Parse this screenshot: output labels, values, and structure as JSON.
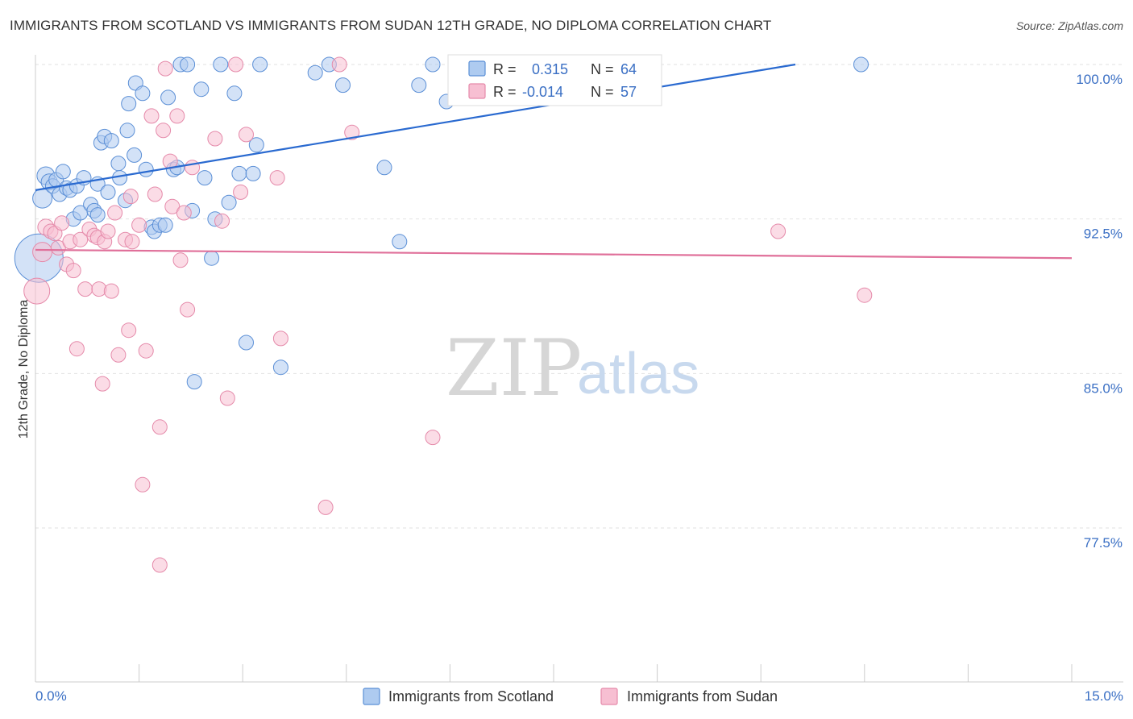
{
  "title": "IMMIGRANTS FROM SCOTLAND VS IMMIGRANTS FROM SUDAN 12TH GRADE, NO DIPLOMA CORRELATION CHART",
  "source": "Source: ZipAtlas.com",
  "watermark": {
    "zip": "ZIP",
    "atlas": "atlas"
  },
  "colors": {
    "scotland_fill": "#aecbf0",
    "scotland_stroke": "#5b8fd6",
    "scotland_line": "#2a6ad0",
    "sudan_fill": "#f7bfd2",
    "sudan_stroke": "#e58aaa",
    "sudan_line": "#e0709a",
    "value_text": "#3a6fc4"
  },
  "legend": {
    "scotland": {
      "r_label": "R =",
      "r_value": "0.315",
      "n_label": "N =",
      "n_value": "64"
    },
    "sudan": {
      "r_label": "R =",
      "r_value": "-0.014",
      "n_label": "N =",
      "n_value": "57"
    }
  },
  "bottom_legend": {
    "scotland": "Immigrants from Scotland",
    "sudan": "Immigrants from Sudan"
  },
  "chart_data": {
    "type": "scatter",
    "title": "IMMIGRANTS FROM SCOTLAND VS IMMIGRANTS FROM SUDAN 12TH GRADE, NO DIPLOMA CORRELATION CHART",
    "xlabel": "",
    "ylabel": "12th Grade, No Diploma",
    "xlim": [
      0,
      15
    ],
    "ylim": [
      70,
      100.5
    ],
    "x_tick_labels": [
      "0.0%",
      "15.0%"
    ],
    "y_ticks": [
      77.5,
      85.0,
      92.5,
      100.0
    ],
    "y_tick_labels": [
      "77.5%",
      "85.0%",
      "92.5%",
      "100.0%"
    ],
    "series": [
      {
        "name": "Immigrants from Scotland",
        "R": 0.315,
        "N": 64,
        "trend": {
          "x0": 0,
          "y0": 93.9,
          "x1": 11.0,
          "y1": 100.0
        },
        "points": [
          [
            0.05,
            90.6,
            30
          ],
          [
            0.1,
            93.5,
            12
          ],
          [
            0.15,
            94.6,
            11
          ],
          [
            0.2,
            94.3,
            10
          ],
          [
            0.25,
            94.1,
            9
          ],
          [
            0.3,
            94.4,
            9
          ],
          [
            0.35,
            93.7,
            9
          ],
          [
            0.4,
            94.8,
            9
          ],
          [
            0.45,
            94.0,
            9
          ],
          [
            0.5,
            93.9,
            9
          ],
          [
            0.55,
            92.5,
            9
          ],
          [
            0.6,
            94.1,
            9
          ],
          [
            0.65,
            92.8,
            9
          ],
          [
            0.7,
            94.5,
            9
          ],
          [
            0.8,
            93.2,
            9
          ],
          [
            0.85,
            92.9,
            9
          ],
          [
            0.9,
            92.7,
            9
          ],
          [
            0.9,
            94.2,
            9
          ],
          [
            0.95,
            96.2,
            9
          ],
          [
            1.0,
            96.5,
            9
          ],
          [
            1.05,
            93.8,
            9
          ],
          [
            1.1,
            96.3,
            9
          ],
          [
            1.2,
            95.2,
            9
          ],
          [
            1.22,
            94.5,
            9
          ],
          [
            1.3,
            93.4,
            9
          ],
          [
            1.33,
            96.8,
            9
          ],
          [
            1.35,
            98.1,
            9
          ],
          [
            1.43,
            95.6,
            9
          ],
          [
            1.45,
            99.1,
            9
          ],
          [
            1.55,
            98.6,
            9
          ],
          [
            1.6,
            94.9,
            9
          ],
          [
            1.68,
            92.1,
            9
          ],
          [
            1.72,
            91.9,
            9
          ],
          [
            1.8,
            92.2,
            9
          ],
          [
            1.88,
            92.2,
            9
          ],
          [
            1.92,
            98.4,
            9
          ],
          [
            2.0,
            94.9,
            9
          ],
          [
            2.05,
            95.0,
            9
          ],
          [
            2.1,
            100.0,
            9
          ],
          [
            2.2,
            100.0,
            9
          ],
          [
            2.27,
            92.9,
            9
          ],
          [
            2.3,
            84.6,
            9
          ],
          [
            2.4,
            98.8,
            9
          ],
          [
            2.45,
            94.5,
            9
          ],
          [
            2.55,
            90.6,
            9
          ],
          [
            2.6,
            92.5,
            9
          ],
          [
            2.68,
            100.0,
            9
          ],
          [
            2.8,
            93.3,
            9
          ],
          [
            2.88,
            98.6,
            9
          ],
          [
            2.95,
            94.7,
            9
          ],
          [
            3.05,
            86.5,
            9
          ],
          [
            3.15,
            94.7,
            9
          ],
          [
            3.2,
            96.1,
            9
          ],
          [
            3.25,
            100.0,
            9
          ],
          [
            3.55,
            85.3,
            9
          ],
          [
            4.05,
            99.6,
            9
          ],
          [
            4.25,
            100.0,
            9
          ],
          [
            4.45,
            99.0,
            9
          ],
          [
            5.05,
            95.0,
            9
          ],
          [
            5.27,
            91.4,
            9
          ],
          [
            5.55,
            99.0,
            9
          ],
          [
            5.75,
            100.0,
            9
          ],
          [
            5.95,
            98.2,
            9
          ],
          [
            11.95,
            100.0,
            9
          ]
        ]
      },
      {
        "name": "Immigrants from Sudan",
        "R": -0.014,
        "N": 57,
        "trend": {
          "x0": 0,
          "y0": 91.0,
          "x1": 15.0,
          "y1": 90.6
        },
        "points": [
          [
            0.02,
            89.0,
            16
          ],
          [
            0.1,
            90.9,
            12
          ],
          [
            0.15,
            92.1,
            10
          ],
          [
            0.22,
            91.9,
            9
          ],
          [
            0.28,
            91.8,
            9
          ],
          [
            0.33,
            91.1,
            9
          ],
          [
            0.38,
            92.3,
            9
          ],
          [
            0.45,
            90.3,
            9
          ],
          [
            0.5,
            91.4,
            9
          ],
          [
            0.55,
            90.0,
            9
          ],
          [
            0.6,
            86.2,
            9
          ],
          [
            0.65,
            91.5,
            9
          ],
          [
            0.72,
            89.1,
            9
          ],
          [
            0.78,
            92.0,
            9
          ],
          [
            0.85,
            91.7,
            9
          ],
          [
            0.9,
            91.6,
            9
          ],
          [
            0.92,
            89.1,
            9
          ],
          [
            0.97,
            84.5,
            9
          ],
          [
            1.0,
            91.4,
            9
          ],
          [
            1.05,
            91.9,
            9
          ],
          [
            1.1,
            89.0,
            9
          ],
          [
            1.15,
            92.8,
            9
          ],
          [
            1.2,
            85.9,
            9
          ],
          [
            1.3,
            91.5,
            9
          ],
          [
            1.35,
            87.1,
            9
          ],
          [
            1.38,
            93.6,
            9
          ],
          [
            1.4,
            91.4,
            9
          ],
          [
            1.5,
            92.2,
            9
          ],
          [
            1.55,
            79.6,
            9
          ],
          [
            1.6,
            86.1,
            9
          ],
          [
            1.68,
            97.5,
            9
          ],
          [
            1.73,
            93.7,
            9
          ],
          [
            1.8,
            82.4,
            9
          ],
          [
            1.85,
            96.8,
            9
          ],
          [
            1.88,
            99.8,
            9
          ],
          [
            1.95,
            95.3,
            9
          ],
          [
            1.98,
            93.1,
            9
          ],
          [
            2.05,
            97.5,
            9
          ],
          [
            2.1,
            90.5,
            9
          ],
          [
            2.15,
            92.8,
            9
          ],
          [
            2.2,
            88.1,
            9
          ],
          [
            2.27,
            95.0,
            9
          ],
          [
            2.6,
            96.4,
            9
          ],
          [
            2.7,
            92.4,
            9
          ],
          [
            2.78,
            83.8,
            9
          ],
          [
            2.9,
            100.0,
            9
          ],
          [
            2.97,
            93.8,
            9
          ],
          [
            3.05,
            96.6,
            9
          ],
          [
            3.5,
            94.5,
            9
          ],
          [
            3.55,
            86.7,
            9
          ],
          [
            4.2,
            78.5,
            9
          ],
          [
            4.4,
            100.0,
            9
          ],
          [
            4.58,
            96.7,
            9
          ],
          [
            5.75,
            81.9,
            9
          ],
          [
            10.75,
            91.9,
            9
          ],
          [
            12.0,
            88.8,
            9
          ],
          [
            1.8,
            75.7,
            9
          ]
        ]
      }
    ]
  }
}
